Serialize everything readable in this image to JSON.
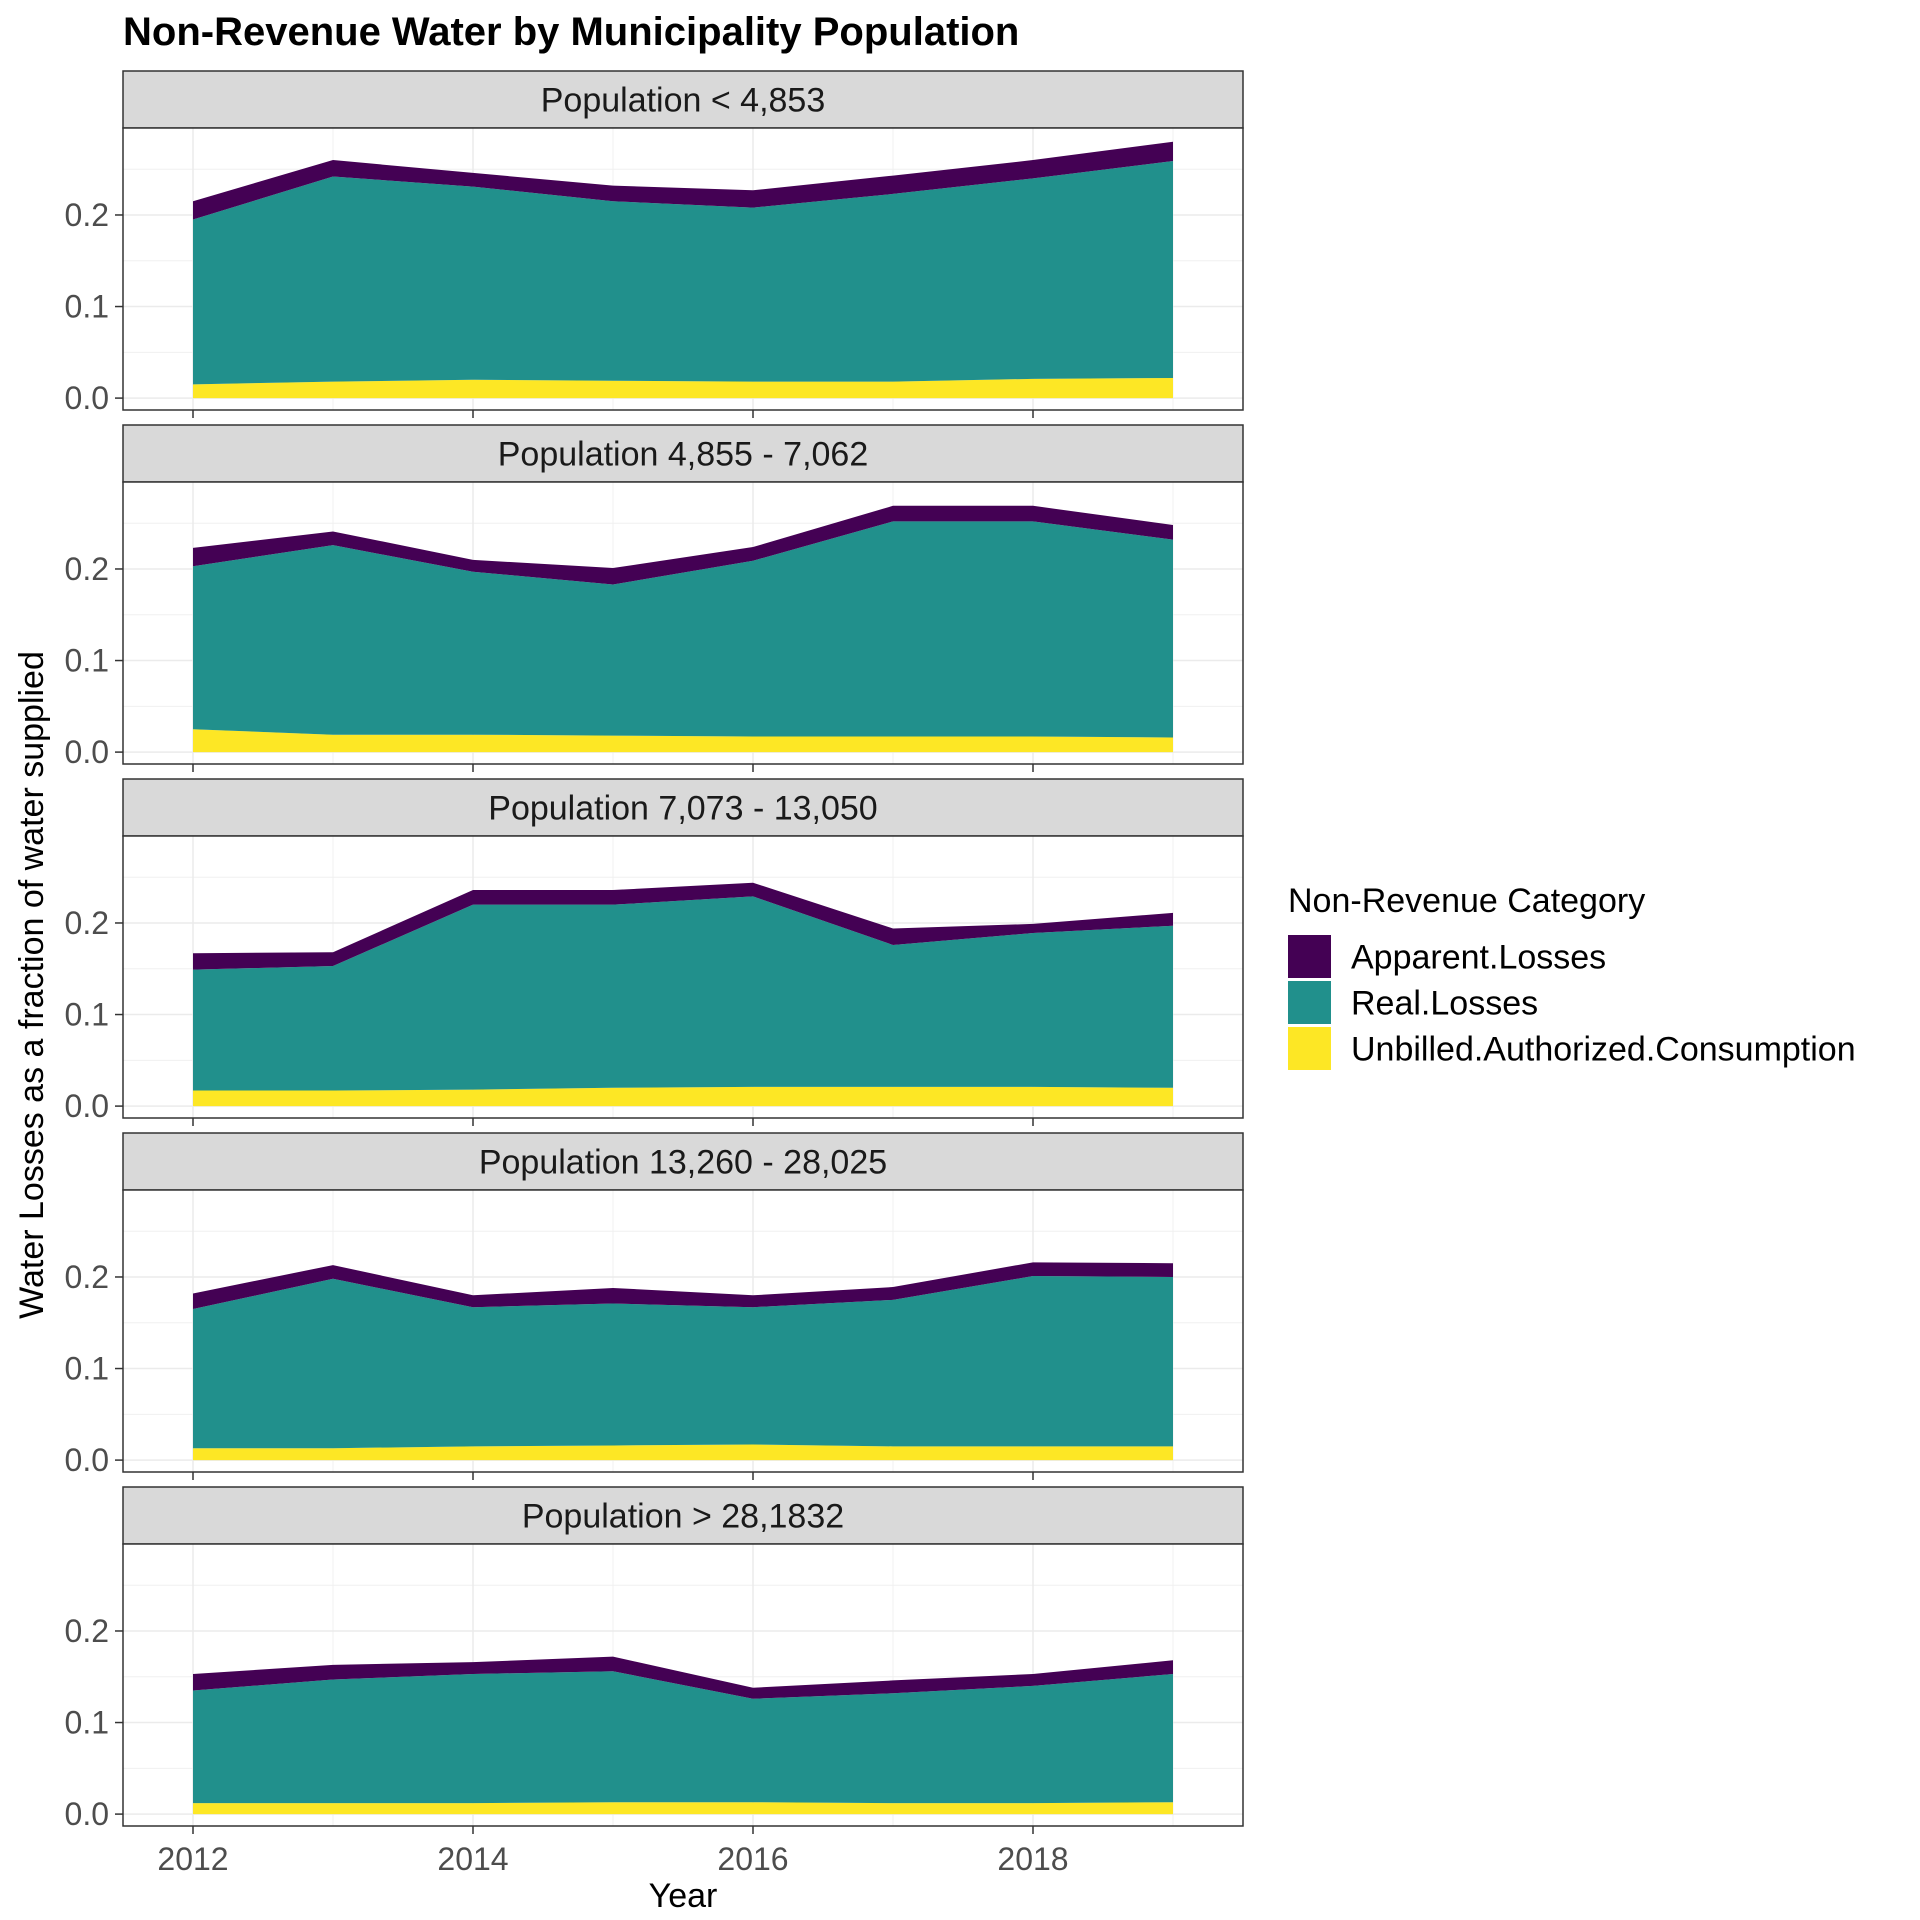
{
  "chart_data": {
    "type": "area",
    "title": "Non-Revenue Water by Municipality Population",
    "xlabel": "Year",
    "ylabel": "Water Losses as a fraction of water supplied",
    "x": [
      2012,
      2013,
      2014,
      2015,
      2016,
      2017,
      2018,
      2019
    ],
    "x_ticks": [
      2012,
      2014,
      2016,
      2018
    ],
    "y_ticks": [
      "0.0",
      "0.1",
      "0.2"
    ],
    "xlim": [
      2011.5,
      2019.5
    ],
    "ylim": [
      -0.013,
      0.295
    ],
    "grid": true,
    "stacked": true,
    "legend": {
      "title": "Non-Revenue Category",
      "position": "right",
      "entries": [
        {
          "name": "Apparent.Losses",
          "color": "#440154"
        },
        {
          "name": "Real.Losses",
          "color": "#21908C"
        },
        {
          "name": "Unbilled.Authorized.Consumption",
          "color": "#FDE725"
        }
      ]
    },
    "panels": [
      {
        "label": "Population < 4,853",
        "series": [
          {
            "name": "Unbilled.Authorized.Consumption",
            "values": [
              0.015,
              0.018,
              0.02,
              0.019,
              0.018,
              0.018,
              0.021,
              0.022
            ]
          },
          {
            "name": "Real.Losses",
            "values": [
              0.18,
              0.224,
              0.211,
              0.196,
              0.19,
              0.205,
              0.219,
              0.237
            ]
          },
          {
            "name": "Apparent.Losses",
            "values": [
              0.02,
              0.018,
              0.015,
              0.017,
              0.019,
              0.02,
              0.02,
              0.021
            ]
          }
        ]
      },
      {
        "label": "Population 4,855 - 7,062",
        "series": [
          {
            "name": "Unbilled.Authorized.Consumption",
            "values": [
              0.025,
              0.019,
              0.019,
              0.018,
              0.017,
              0.017,
              0.017,
              0.016
            ]
          },
          {
            "name": "Real.Losses",
            "values": [
              0.178,
              0.207,
              0.178,
              0.165,
              0.192,
              0.235,
              0.235,
              0.216
            ]
          },
          {
            "name": "Apparent.Losses",
            "values": [
              0.02,
              0.015,
              0.013,
              0.018,
              0.015,
              0.017,
              0.017,
              0.016
            ]
          }
        ]
      },
      {
        "label": "Population 7,073 - 13,050",
        "series": [
          {
            "name": "Unbilled.Authorized.Consumption",
            "values": [
              0.017,
              0.017,
              0.018,
              0.02,
              0.021,
              0.021,
              0.021,
              0.02
            ]
          },
          {
            "name": "Real.Losses",
            "values": [
              0.132,
              0.136,
              0.202,
              0.2,
              0.208,
              0.155,
              0.168,
              0.177
            ]
          },
          {
            "name": "Apparent.Losses",
            "values": [
              0.018,
              0.015,
              0.016,
              0.016,
              0.015,
              0.018,
              0.01,
              0.014
            ]
          }
        ]
      },
      {
        "label": "Population 13,260 - 28,025",
        "series": [
          {
            "name": "Unbilled.Authorized.Consumption",
            "values": [
              0.013,
              0.013,
              0.015,
              0.016,
              0.017,
              0.015,
              0.015,
              0.015
            ]
          },
          {
            "name": "Real.Losses",
            "values": [
              0.152,
              0.185,
              0.152,
              0.155,
              0.15,
              0.16,
              0.186,
              0.185
            ]
          },
          {
            "name": "Apparent.Losses",
            "values": [
              0.017,
              0.015,
              0.013,
              0.017,
              0.013,
              0.014,
              0.015,
              0.015
            ]
          }
        ]
      },
      {
        "label": "Population > 28,1832",
        "series": [
          {
            "name": "Unbilled.Authorized.Consumption",
            "values": [
              0.012,
              0.012,
              0.012,
              0.013,
              0.013,
              0.012,
              0.012,
              0.013
            ]
          },
          {
            "name": "Real.Losses",
            "values": [
              0.123,
              0.135,
              0.141,
              0.143,
              0.113,
              0.12,
              0.128,
              0.14
            ]
          },
          {
            "name": "Apparent.Losses",
            "values": [
              0.018,
              0.016,
              0.013,
              0.016,
              0.012,
              0.014,
              0.013,
              0.015
            ]
          }
        ]
      }
    ]
  }
}
